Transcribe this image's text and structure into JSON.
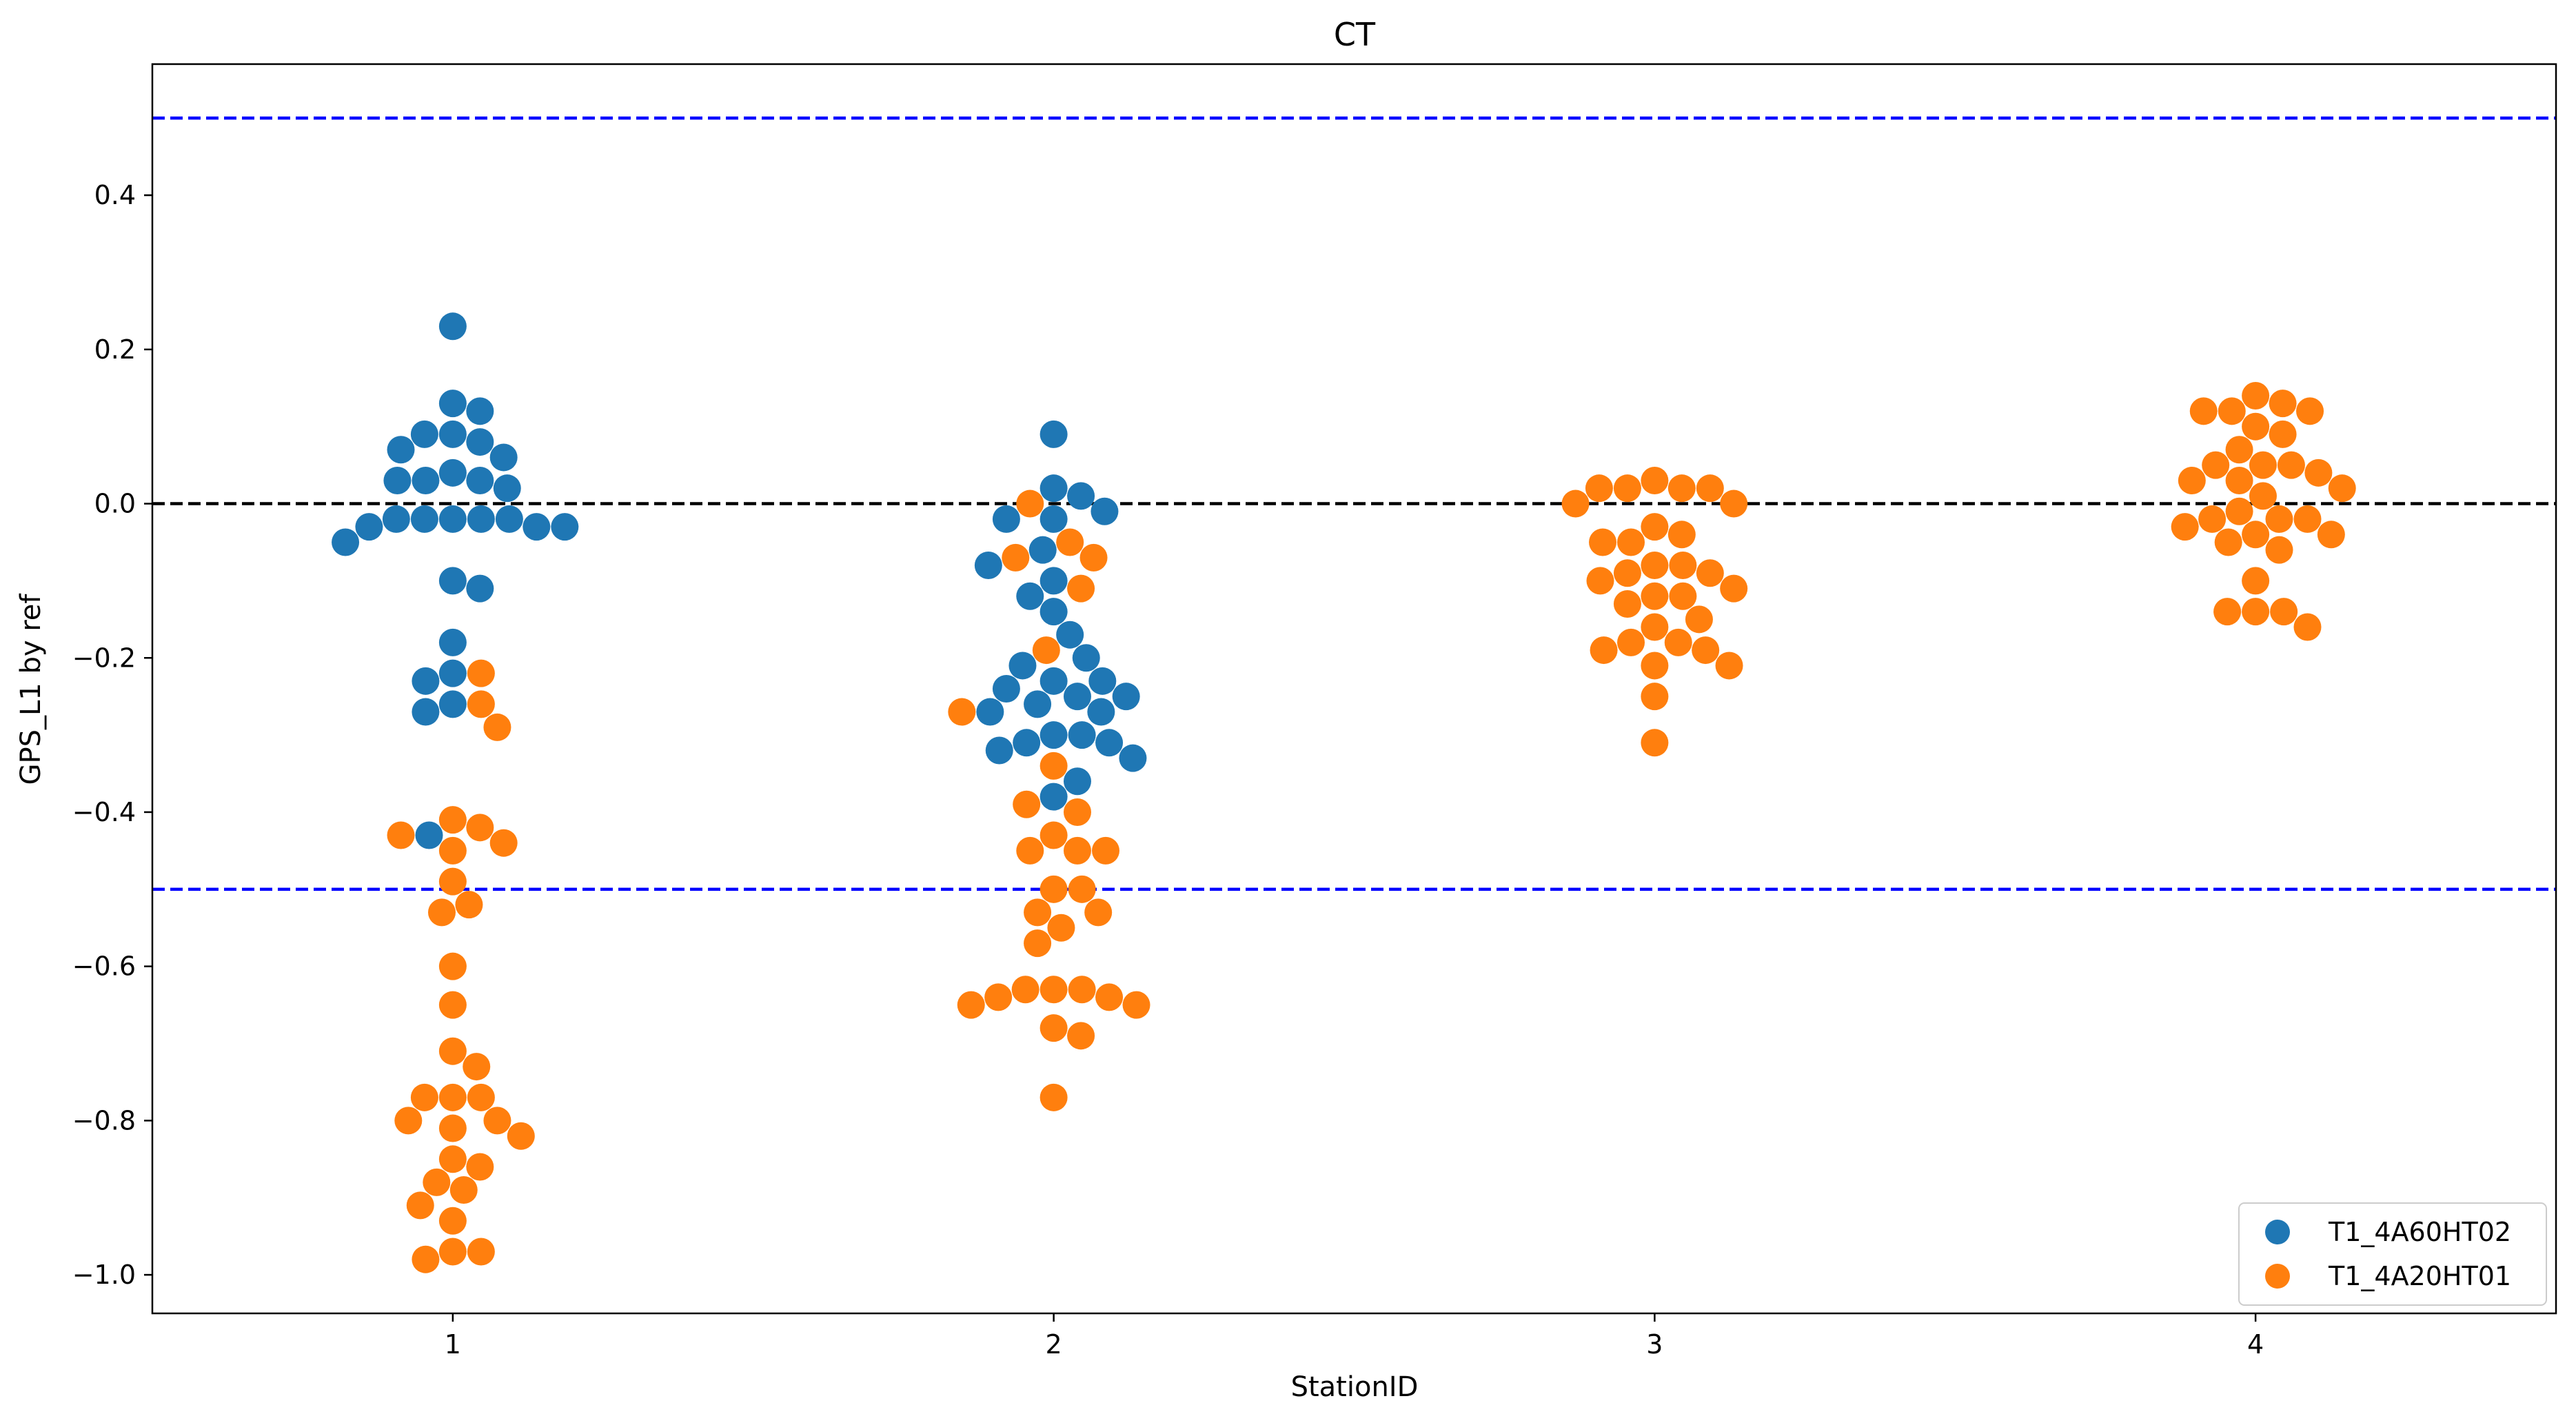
{
  "chart_data": {
    "type": "scatter",
    "subtype": "swarm",
    "title": "CT",
    "xlabel": "StationID",
    "ylabel": "GPS_L1 by ref",
    "categories": [
      "1",
      "2",
      "3",
      "4"
    ],
    "xlim": [
      0.5,
      4.5
    ],
    "ylim": [
      -1.05,
      0.57
    ],
    "yticks": [
      -1.0,
      -0.8,
      -0.6,
      -0.4,
      -0.2,
      0.0,
      0.2,
      0.4
    ],
    "ytick_labels": [
      "−1.0",
      "−0.8",
      "−0.6",
      "−0.4",
      "−0.2",
      "0.0",
      "0.2",
      "0.4"
    ],
    "grid": false,
    "legend_position": "lower-right",
    "reference_lines": [
      {
        "y": 0.5,
        "color": "#0000ff",
        "style": "dashed"
      },
      {
        "y": 0.0,
        "color": "#000000",
        "style": "dashed"
      },
      {
        "y": -0.5,
        "color": "#0000ff",
        "style": "dashed"
      }
    ],
    "series": [
      {
        "name": "T1_4A60HT02",
        "color": "#1f77b4",
        "points": [
          {
            "x": 1,
            "y": 0.23
          },
          {
            "x": 1,
            "y": 0.13
          },
          {
            "x": 1,
            "y": 0.12
          },
          {
            "x": 1,
            "y": 0.09
          },
          {
            "x": 1,
            "y": 0.09
          },
          {
            "x": 1,
            "y": 0.08
          },
          {
            "x": 1,
            "y": 0.07
          },
          {
            "x": 1,
            "y": 0.06
          },
          {
            "x": 1,
            "y": 0.04
          },
          {
            "x": 1,
            "y": 0.03
          },
          {
            "x": 1,
            "y": 0.03
          },
          {
            "x": 1,
            "y": 0.03
          },
          {
            "x": 1,
            "y": 0.02
          },
          {
            "x": 1,
            "y": -0.02
          },
          {
            "x": 1,
            "y": -0.02
          },
          {
            "x": 1,
            "y": -0.02
          },
          {
            "x": 1,
            "y": -0.02
          },
          {
            "x": 1,
            "y": -0.02
          },
          {
            "x": 1,
            "y": -0.03
          },
          {
            "x": 1,
            "y": -0.03
          },
          {
            "x": 1,
            "y": -0.03
          },
          {
            "x": 1,
            "y": -0.05
          },
          {
            "x": 1,
            "y": -0.1
          },
          {
            "x": 1,
            "y": -0.11
          },
          {
            "x": 1,
            "y": -0.18
          },
          {
            "x": 1,
            "y": -0.22
          },
          {
            "x": 1,
            "y": -0.23
          },
          {
            "x": 1,
            "y": -0.26
          },
          {
            "x": 1,
            "y": -0.27
          },
          {
            "x": 1,
            "y": -0.43
          },
          {
            "x": 2,
            "y": 0.09
          },
          {
            "x": 2,
            "y": 0.02
          },
          {
            "x": 2,
            "y": 0.01
          },
          {
            "x": 2,
            "y": -0.01
          },
          {
            "x": 2,
            "y": -0.02
          },
          {
            "x": 2,
            "y": -0.02
          },
          {
            "x": 2,
            "y": -0.06
          },
          {
            "x": 2,
            "y": -0.08
          },
          {
            "x": 2,
            "y": -0.1
          },
          {
            "x": 2,
            "y": -0.12
          },
          {
            "x": 2,
            "y": -0.14
          },
          {
            "x": 2,
            "y": -0.17
          },
          {
            "x": 2,
            "y": -0.2
          },
          {
            "x": 2,
            "y": -0.21
          },
          {
            "x": 2,
            "y": -0.23
          },
          {
            "x": 2,
            "y": -0.23
          },
          {
            "x": 2,
            "y": -0.24
          },
          {
            "x": 2,
            "y": -0.25
          },
          {
            "x": 2,
            "y": -0.25
          },
          {
            "x": 2,
            "y": -0.26
          },
          {
            "x": 2,
            "y": -0.27
          },
          {
            "x": 2,
            "y": -0.27
          },
          {
            "x": 2,
            "y": -0.3
          },
          {
            "x": 2,
            "y": -0.3
          },
          {
            "x": 2,
            "y": -0.31
          },
          {
            "x": 2,
            "y": -0.31
          },
          {
            "x": 2,
            "y": -0.32
          },
          {
            "x": 2,
            "y": -0.33
          },
          {
            "x": 2,
            "y": -0.36
          },
          {
            "x": 2,
            "y": -0.38
          }
        ]
      },
      {
        "name": "T1_4A20HT01",
        "color": "#ff7f0e",
        "points": [
          {
            "x": 1,
            "y": -0.22
          },
          {
            "x": 1,
            "y": -0.26
          },
          {
            "x": 1,
            "y": -0.29
          },
          {
            "x": 1,
            "y": -0.41
          },
          {
            "x": 1,
            "y": -0.42
          },
          {
            "x": 1,
            "y": -0.43
          },
          {
            "x": 1,
            "y": -0.44
          },
          {
            "x": 1,
            "y": -0.45
          },
          {
            "x": 1,
            "y": -0.49
          },
          {
            "x": 1,
            "y": -0.52
          },
          {
            "x": 1,
            "y": -0.53
          },
          {
            "x": 1,
            "y": -0.6
          },
          {
            "x": 1,
            "y": -0.65
          },
          {
            "x": 1,
            "y": -0.71
          },
          {
            "x": 1,
            "y": -0.73
          },
          {
            "x": 1,
            "y": -0.77
          },
          {
            "x": 1,
            "y": -0.77
          },
          {
            "x": 1,
            "y": -0.77
          },
          {
            "x": 1,
            "y": -0.8
          },
          {
            "x": 1,
            "y": -0.8
          },
          {
            "x": 1,
            "y": -0.81
          },
          {
            "x": 1,
            "y": -0.82
          },
          {
            "x": 1,
            "y": -0.85
          },
          {
            "x": 1,
            "y": -0.86
          },
          {
            "x": 1,
            "y": -0.88
          },
          {
            "x": 1,
            "y": -0.89
          },
          {
            "x": 1,
            "y": -0.91
          },
          {
            "x": 1,
            "y": -0.93
          },
          {
            "x": 1,
            "y": -0.97
          },
          {
            "x": 1,
            "y": -0.97
          },
          {
            "x": 1,
            "y": -0.98
          },
          {
            "x": 2,
            "y": 0.0
          },
          {
            "x": 2,
            "y": -0.05
          },
          {
            "x": 2,
            "y": -0.07
          },
          {
            "x": 2,
            "y": -0.07
          },
          {
            "x": 2,
            "y": -0.11
          },
          {
            "x": 2,
            "y": -0.19
          },
          {
            "x": 2,
            "y": -0.27
          },
          {
            "x": 2,
            "y": -0.34
          },
          {
            "x": 2,
            "y": -0.39
          },
          {
            "x": 2,
            "y": -0.4
          },
          {
            "x": 2,
            "y": -0.43
          },
          {
            "x": 2,
            "y": -0.45
          },
          {
            "x": 2,
            "y": -0.45
          },
          {
            "x": 2,
            "y": -0.45
          },
          {
            "x": 2,
            "y": -0.5
          },
          {
            "x": 2,
            "y": -0.5
          },
          {
            "x": 2,
            "y": -0.53
          },
          {
            "x": 2,
            "y": -0.53
          },
          {
            "x": 2,
            "y": -0.55
          },
          {
            "x": 2,
            "y": -0.57
          },
          {
            "x": 2,
            "y": -0.63
          },
          {
            "x": 2,
            "y": -0.63
          },
          {
            "x": 2,
            "y": -0.63
          },
          {
            "x": 2,
            "y": -0.64
          },
          {
            "x": 2,
            "y": -0.64
          },
          {
            "x": 2,
            "y": -0.65
          },
          {
            "x": 2,
            "y": -0.65
          },
          {
            "x": 2,
            "y": -0.68
          },
          {
            "x": 2,
            "y": -0.69
          },
          {
            "x": 2,
            "y": -0.77
          },
          {
            "x": 3,
            "y": 0.03
          },
          {
            "x": 3,
            "y": 0.02
          },
          {
            "x": 3,
            "y": 0.02
          },
          {
            "x": 3,
            "y": 0.02
          },
          {
            "x": 3,
            "y": 0.02
          },
          {
            "x": 3,
            "y": 0.0
          },
          {
            "x": 3,
            "y": 0.0
          },
          {
            "x": 3,
            "y": -0.03
          },
          {
            "x": 3,
            "y": -0.04
          },
          {
            "x": 3,
            "y": -0.05
          },
          {
            "x": 3,
            "y": -0.05
          },
          {
            "x": 3,
            "y": -0.08
          },
          {
            "x": 3,
            "y": -0.08
          },
          {
            "x": 3,
            "y": -0.09
          },
          {
            "x": 3,
            "y": -0.09
          },
          {
            "x": 3,
            "y": -0.1
          },
          {
            "x": 3,
            "y": -0.11
          },
          {
            "x": 3,
            "y": -0.12
          },
          {
            "x": 3,
            "y": -0.12
          },
          {
            "x": 3,
            "y": -0.13
          },
          {
            "x": 3,
            "y": -0.15
          },
          {
            "x": 3,
            "y": -0.16
          },
          {
            "x": 3,
            "y": -0.18
          },
          {
            "x": 3,
            "y": -0.18
          },
          {
            "x": 3,
            "y": -0.19
          },
          {
            "x": 3,
            "y": -0.19
          },
          {
            "x": 3,
            "y": -0.21
          },
          {
            "x": 3,
            "y": -0.21
          },
          {
            "x": 3,
            "y": -0.25
          },
          {
            "x": 3,
            "y": -0.31
          },
          {
            "x": 4,
            "y": 0.14
          },
          {
            "x": 4,
            "y": 0.13
          },
          {
            "x": 4,
            "y": 0.12
          },
          {
            "x": 4,
            "y": 0.12
          },
          {
            "x": 4,
            "y": 0.12
          },
          {
            "x": 4,
            "y": 0.1
          },
          {
            "x": 4,
            "y": 0.09
          },
          {
            "x": 4,
            "y": 0.07
          },
          {
            "x": 4,
            "y": 0.05
          },
          {
            "x": 4,
            "y": 0.05
          },
          {
            "x": 4,
            "y": 0.05
          },
          {
            "x": 4,
            "y": 0.04
          },
          {
            "x": 4,
            "y": 0.03
          },
          {
            "x": 4,
            "y": 0.03
          },
          {
            "x": 4,
            "y": 0.02
          },
          {
            "x": 4,
            "y": 0.01
          },
          {
            "x": 4,
            "y": -0.01
          },
          {
            "x": 4,
            "y": -0.02
          },
          {
            "x": 4,
            "y": -0.02
          },
          {
            "x": 4,
            "y": -0.02
          },
          {
            "x": 4,
            "y": -0.03
          },
          {
            "x": 4,
            "y": -0.04
          },
          {
            "x": 4,
            "y": -0.04
          },
          {
            "x": 4,
            "y": -0.05
          },
          {
            "x": 4,
            "y": -0.06
          },
          {
            "x": 4,
            "y": -0.1
          },
          {
            "x": 4,
            "y": -0.14
          },
          {
            "x": 4,
            "y": -0.14
          },
          {
            "x": 4,
            "y": -0.14
          },
          {
            "x": 4,
            "y": -0.16
          }
        ]
      }
    ]
  }
}
